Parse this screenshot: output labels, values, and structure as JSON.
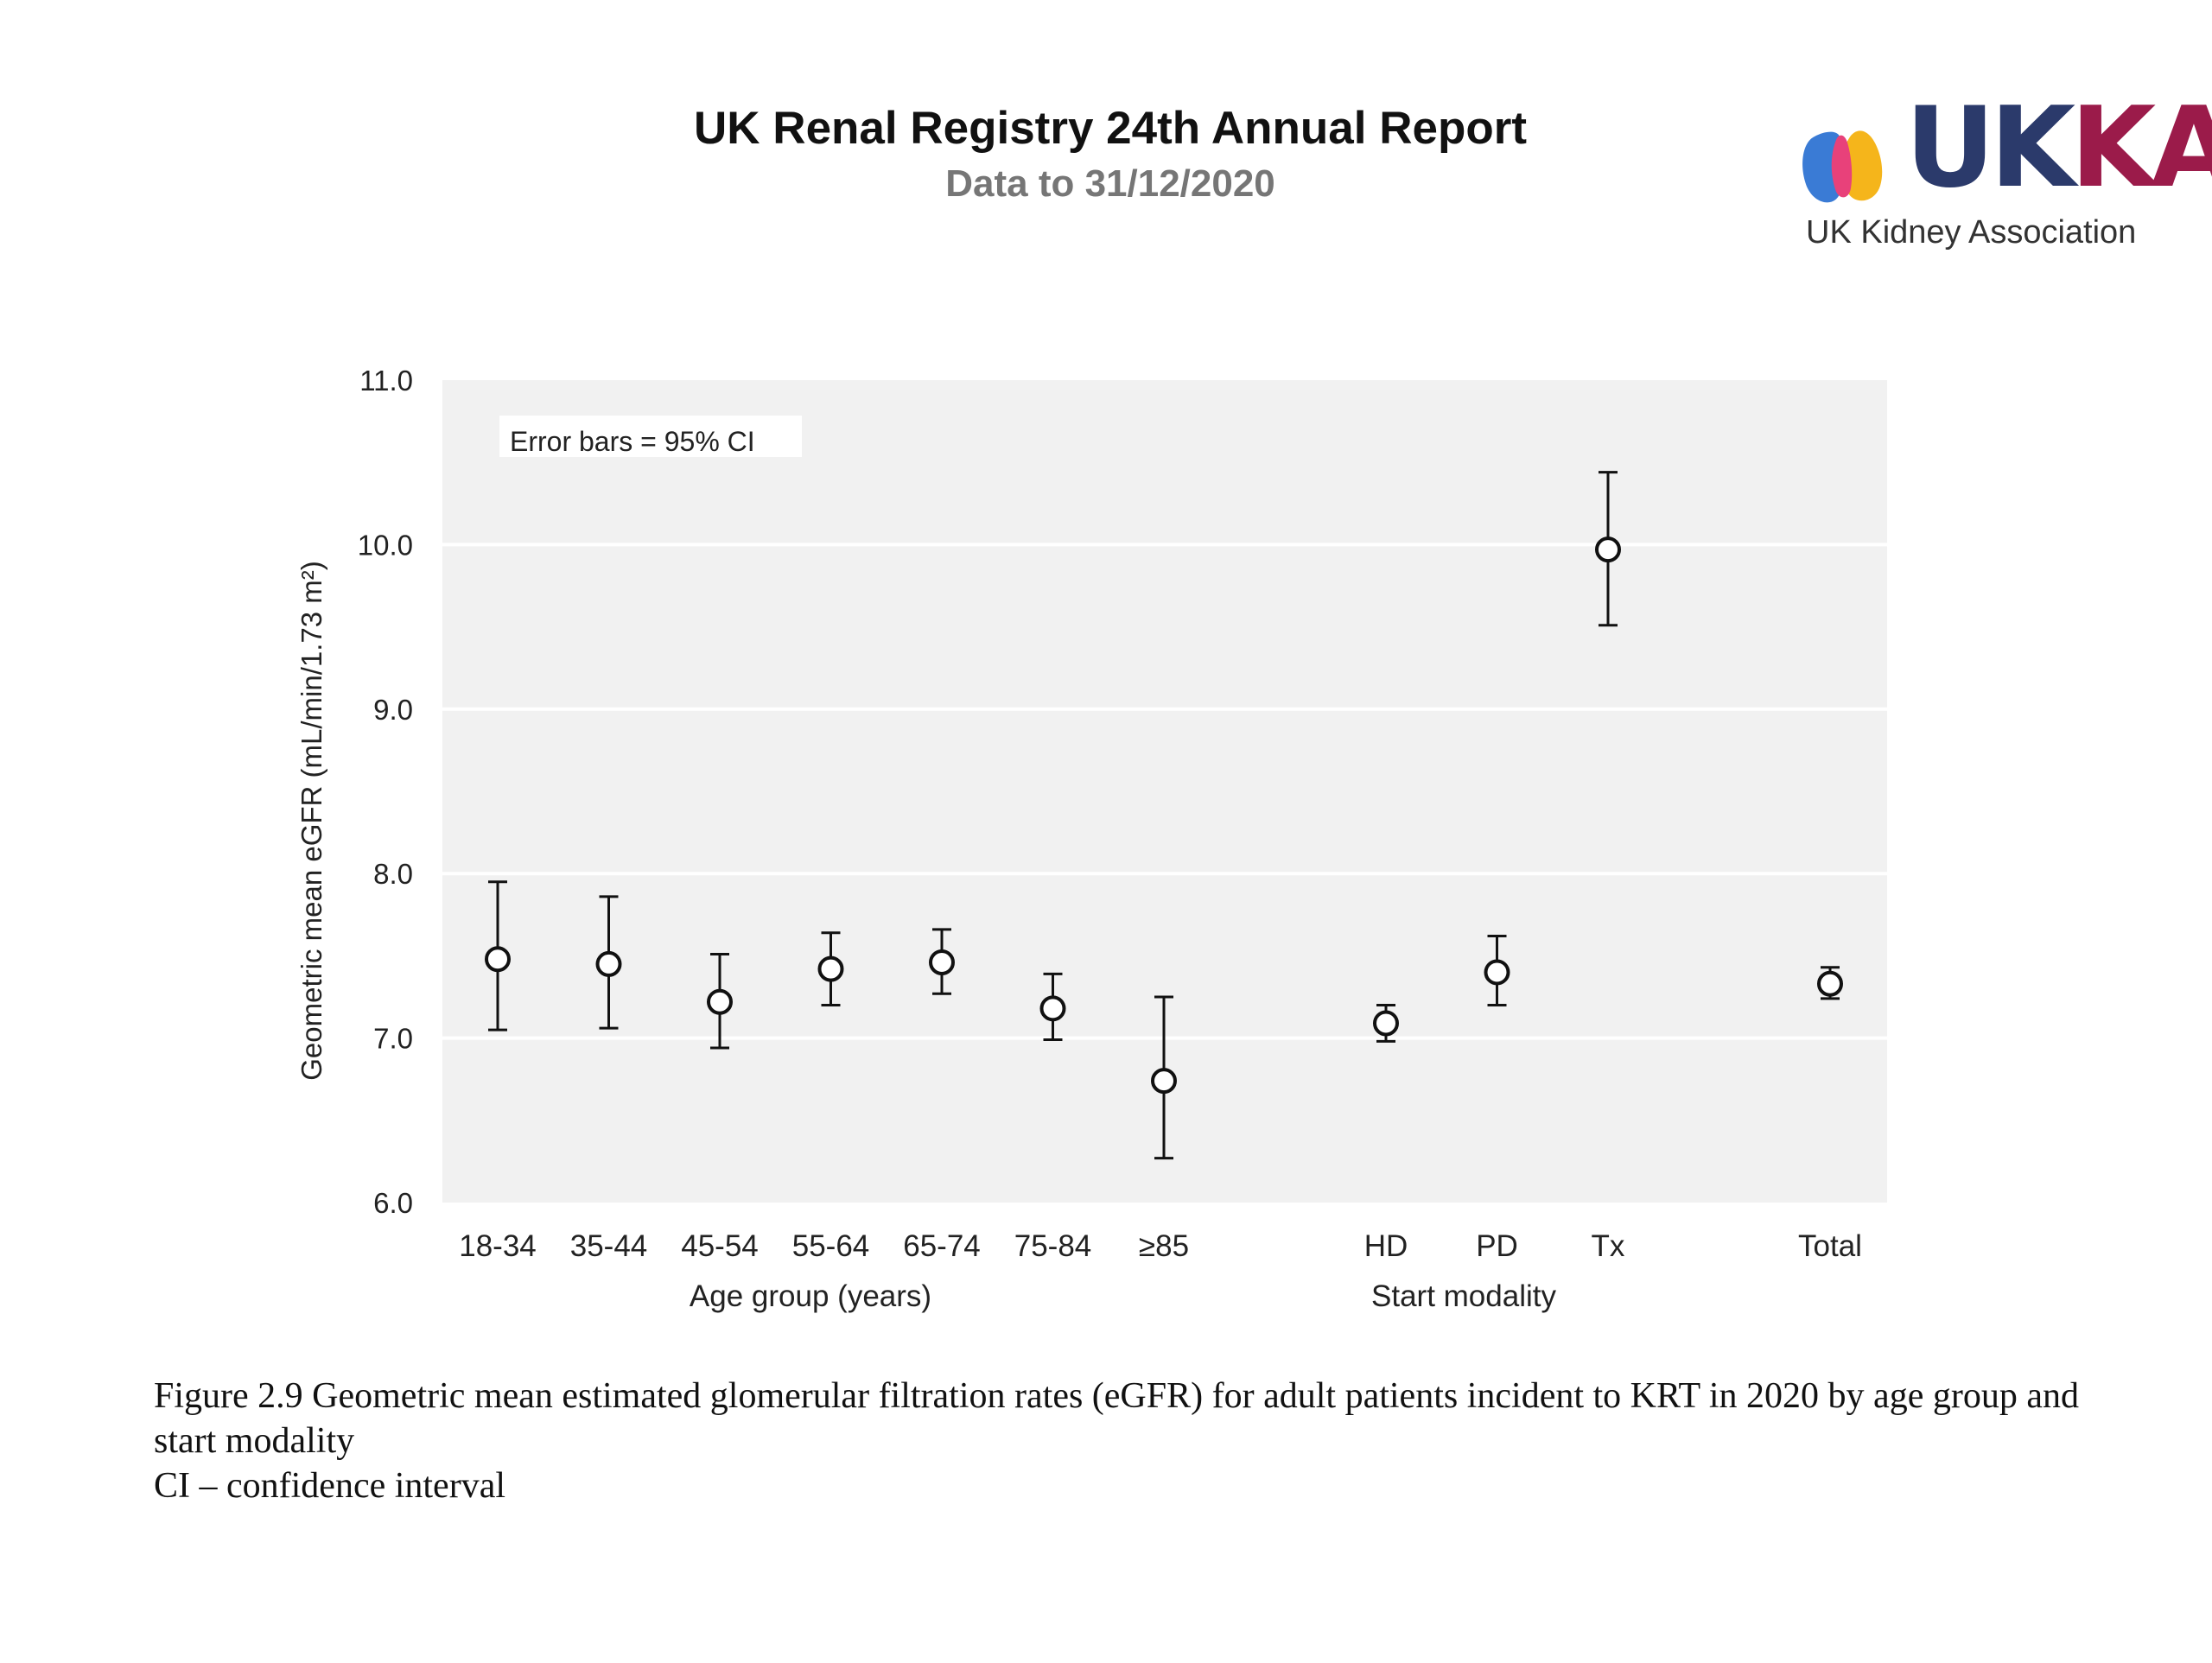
{
  "header": {
    "title": "UK Renal Registry 24th Annual Report",
    "subtitle": "Data to 31/12/2020",
    "logo_text": "UKKA",
    "logo_tagline": "UK Kidney Association",
    "logo_colors": [
      "#3a7bd5",
      "#e8417a",
      "#f5b51b",
      "#2b3a6b",
      "#9b1b4a"
    ]
  },
  "chart_data": {
    "type": "scatter",
    "annotation": "Error bars = 95% CI",
    "ylabel": "Geometric mean eGFR (mL/min/1.73 m²)",
    "ylim": [
      6.0,
      11.0
    ],
    "yticks": [
      "6.0",
      "7.0",
      "8.0",
      "9.0",
      "10.0",
      "11.0"
    ],
    "grid": true,
    "categories": [
      "18-34",
      "35-44",
      "45-54",
      "55-64",
      "65-74",
      "75-84",
      "≥85",
      "HD",
      "PD",
      "Tx",
      "Total"
    ],
    "groups": [
      {
        "label": "Age group (years)",
        "categories": [
          "18-34",
          "35-44",
          "45-54",
          "55-64",
          "65-74",
          "75-84",
          "≥85"
        ]
      },
      {
        "label": "Start modality",
        "categories": [
          "HD",
          "PD",
          "Tx"
        ]
      }
    ],
    "series": [
      {
        "values": [
          7.48,
          7.45,
          7.22,
          7.42,
          7.46,
          7.18,
          6.74,
          7.09,
          7.4,
          9.97,
          7.33
        ],
        "ci_lower": [
          7.05,
          7.06,
          6.94,
          7.2,
          7.27,
          6.99,
          6.27,
          6.98,
          7.2,
          9.51,
          7.24
        ],
        "ci_upper": [
          7.95,
          7.86,
          7.51,
          7.64,
          7.66,
          7.39,
          7.25,
          7.2,
          7.62,
          10.44,
          7.43
        ]
      }
    ]
  },
  "caption": {
    "line1": "Figure 2.9 Geometric mean estimated glomerular filtration rates (eGFR) for adult patients incident to KRT in 2020 by age group and start modality",
    "line2": "CI – confidence interval"
  }
}
